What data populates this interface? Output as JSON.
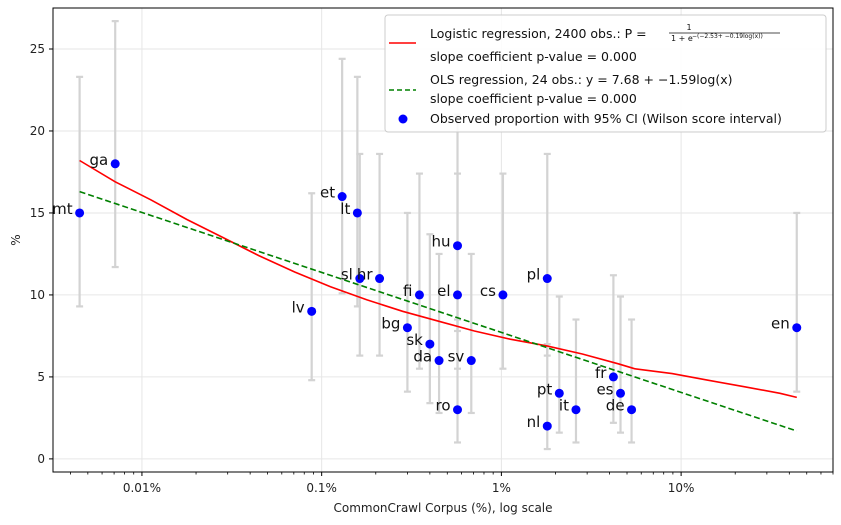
{
  "chart_data": {
    "type": "scatter",
    "xscale": "log",
    "xlim": [
      0.0032,
      70
    ],
    "ylim": [
      -0.8,
      27.5
    ],
    "xlabel": "CommonCrawl Corpus (%), log scale",
    "ylabel": "%",
    "grid": true,
    "legend_position": "top-right",
    "xticks": [
      {
        "value": 0.01,
        "label": "0.01%"
      },
      {
        "value": 0.1,
        "label": "0.1%"
      },
      {
        "value": 1,
        "label": "1%"
      },
      {
        "value": 10,
        "label": "10%"
      }
    ],
    "yticks": [
      0,
      5,
      10,
      15,
      20,
      25
    ],
    "points": [
      {
        "label": "mt",
        "x": 0.0045,
        "y": 15,
        "lo": 9.3,
        "hi": 23.3
      },
      {
        "label": "ga",
        "x": 0.0071,
        "y": 18,
        "lo": 11.7,
        "hi": 26.7
      },
      {
        "label": "lv",
        "x": 0.088,
        "y": 9,
        "lo": 4.8,
        "hi": 16.2
      },
      {
        "label": "et",
        "x": 0.13,
        "y": 16,
        "lo": 10.1,
        "hi": 24.4
      },
      {
        "label": "lt",
        "x": 0.158,
        "y": 15,
        "lo": 9.3,
        "hi": 23.3
      },
      {
        "label": "sl",
        "x": 0.163,
        "y": 11,
        "lo": 6.3,
        "hi": 18.6
      },
      {
        "label": "hr",
        "x": 0.21,
        "y": 11,
        "lo": 6.3,
        "hi": 18.6
      },
      {
        "label": "bg",
        "x": 0.3,
        "y": 8,
        "lo": 4.1,
        "hi": 15.0
      },
      {
        "label": "fi",
        "x": 0.35,
        "y": 10,
        "lo": 5.5,
        "hi": 17.4
      },
      {
        "label": "sk",
        "x": 0.4,
        "y": 7,
        "lo": 3.4,
        "hi": 13.7
      },
      {
        "label": "da",
        "x": 0.45,
        "y": 6,
        "lo": 2.8,
        "hi": 12.5
      },
      {
        "label": "hu",
        "x": 0.57,
        "y": 13,
        "lo": 7.8,
        "hi": 21.0
      },
      {
        "label": "el",
        "x": 0.57,
        "y": 10,
        "lo": 5.5,
        "hi": 17.4
      },
      {
        "label": "ro",
        "x": 0.57,
        "y": 3,
        "lo": 1.0,
        "hi": 8.5
      },
      {
        "label": "sv",
        "x": 0.68,
        "y": 6,
        "lo": 2.8,
        "hi": 12.5
      },
      {
        "label": "cs",
        "x": 1.02,
        "y": 10,
        "lo": 5.5,
        "hi": 17.4
      },
      {
        "label": "pl",
        "x": 1.8,
        "y": 11,
        "lo": 6.3,
        "hi": 18.6
      },
      {
        "label": "nl",
        "x": 1.8,
        "y": 2,
        "lo": 0.6,
        "hi": 7.0
      },
      {
        "label": "pt",
        "x": 2.1,
        "y": 4,
        "lo": 1.6,
        "hi": 9.9
      },
      {
        "label": "it",
        "x": 2.6,
        "y": 3,
        "lo": 1.0,
        "hi": 8.5
      },
      {
        "label": "fr",
        "x": 4.2,
        "y": 5,
        "lo": 2.2,
        "hi": 11.2
      },
      {
        "label": "es",
        "x": 4.6,
        "y": 4,
        "lo": 1.6,
        "hi": 9.9
      },
      {
        "label": "de",
        "x": 5.3,
        "y": 3,
        "lo": 1.0,
        "hi": 8.5
      },
      {
        "label": "en",
        "x": 44,
        "y": 8,
        "lo": 4.1,
        "hi": 15.0
      }
    ],
    "logistic_curve": {
      "x": [
        0.0045,
        0.0071,
        0.0112,
        0.0178,
        0.0282,
        0.0447,
        0.0708,
        0.112,
        0.178,
        0.282,
        0.447,
        0.708,
        1.12,
        1.78,
        2.82,
        4.47,
        5.5,
        8.91,
        14.1,
        22.4,
        35.5,
        44
      ],
      "y": [
        18.2,
        16.9,
        15.8,
        14.6,
        13.5,
        12.4,
        11.4,
        10.5,
        9.7,
        9.0,
        8.4,
        7.8,
        7.3,
        6.9,
        6.4,
        5.8,
        5.5,
        5.2,
        4.8,
        4.4,
        4.0,
        3.75
      ]
    },
    "ols_line": {
      "x": [
        0.0045,
        44
      ],
      "y": [
        16.3,
        1.7
      ]
    },
    "legend": [
      {
        "type": "line",
        "color": "#ff0000",
        "dash": false,
        "text": "Logistic regression, 2400 obs.: P =",
        "formula_num": "1",
        "formula_den": "1 + e",
        "formula_exp": "−(−2.53+ −0.19log(x))",
        "sub": "slope coefficient p-value = 0.000"
      },
      {
        "type": "line",
        "color": "#008000",
        "dash": true,
        "text": "OLS regression, 24 obs.: y = 7.68 + −1.59log(x)",
        "sub": "slope coefficient p-value = 0.000"
      },
      {
        "type": "marker",
        "color": "#0000ff",
        "text": "Observed proportion with 95% CI (Wilson score interval)"
      }
    ],
    "colors": {
      "point": "#0000ff",
      "errorbar": "#d3d3d3",
      "logistic": "#ff0000",
      "ols": "#008000",
      "grid": "#e6e6e6"
    }
  }
}
